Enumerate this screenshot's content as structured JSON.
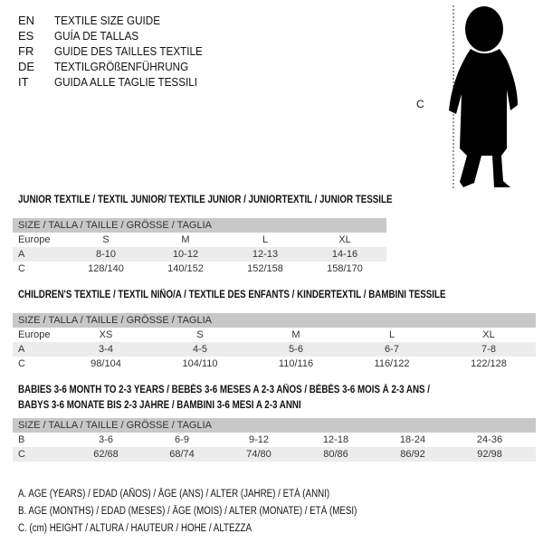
{
  "languages": [
    {
      "code": "EN",
      "title": "TEXTILE SIZE GUIDE"
    },
    {
      "code": "ES",
      "title": "GUÍA DE TALLAS"
    },
    {
      "code": "FR",
      "title": "GUIDE DES TAILLES TEXTILE"
    },
    {
      "code": "DE",
      "title": "TEXTILGRÖßENFÜHRUNG"
    },
    {
      "code": "IT",
      "title": "GUIDA ALLE TAGLIE TESSILI"
    }
  ],
  "figure": {
    "label": "C"
  },
  "tables": [
    {
      "title": "JUNIOR TEXTILE / TEXTIL JUNIOR/ TEXTILE JUNIOR / JUNIORTEXTIL / JUNIOR TESSILE",
      "header": "SIZE / TALLA / TAILLE / GRÖSSE / TAGLIA",
      "rows": [
        {
          "label": "Europe",
          "values": [
            "S",
            "M",
            "L",
            "XL"
          ]
        },
        {
          "label": "A",
          "values": [
            "8-10",
            "10-12",
            "12-13",
            "14-16"
          ]
        },
        {
          "label": "C",
          "values": [
            "128/140",
            "140/152",
            "152/158",
            "158/170"
          ]
        }
      ]
    },
    {
      "title": "CHILDREN'S TEXTILE / TEXTIL NIÑO/A / TEXTILE DES ENFANTS / KINDERTEXTIL / BAMBINI TESSILE",
      "header": "SIZE / TALLA / TAILLE / GRÖSSE / TAGLIA",
      "rows": [
        {
          "label": "Europe",
          "values": [
            "XS",
            "S",
            "M",
            "L",
            "XL"
          ]
        },
        {
          "label": "A",
          "values": [
            "3-4",
            "4-5",
            "5-6",
            "6-7",
            "7-8"
          ]
        },
        {
          "label": "C",
          "values": [
            "98/104",
            "104/110",
            "110/116",
            "116/122",
            "122/128"
          ]
        }
      ]
    },
    {
      "title": "BABIES 3-6 MONTH TO 2-3 YEARS / BEBÉS 3-6 MESES A 2-3 AÑOS / BÉBÉS 3-6 MOIS À 2-3 ANS /",
      "title2": "BABYS 3-6 MONATE BIS 2-3 JAHRE / BAMBINI 3-6 MESI A 2-3 ANNI",
      "header": "SIZE / TALLA / TAILLE / GRÖSSE / TAGLIA",
      "rows": [
        {
          "label": "B",
          "values": [
            "3-6",
            "6-9",
            "9-12",
            "12-18",
            "18-24",
            "24-36"
          ]
        },
        {
          "label": "C",
          "values": [
            "62/68",
            "68/74",
            "74/80",
            "80/86",
            "86/92",
            "92/98"
          ]
        }
      ]
    }
  ],
  "legend": [
    "A. AGE (YEARS) / EDAD (AÑOS) / ÂGE (ANS) / ALTER (JAHRE) / ETÀ (ANNI)",
    "B. AGE (MONTHS) / EDAD (MESES) / ÂGE (MOIS) / ALTER (MONATE) / ETÀ (MESI)",
    "C. (cm) HEIGHT / ALTURA / HAUTEUR / HÖHE / ALTEZZA"
  ]
}
